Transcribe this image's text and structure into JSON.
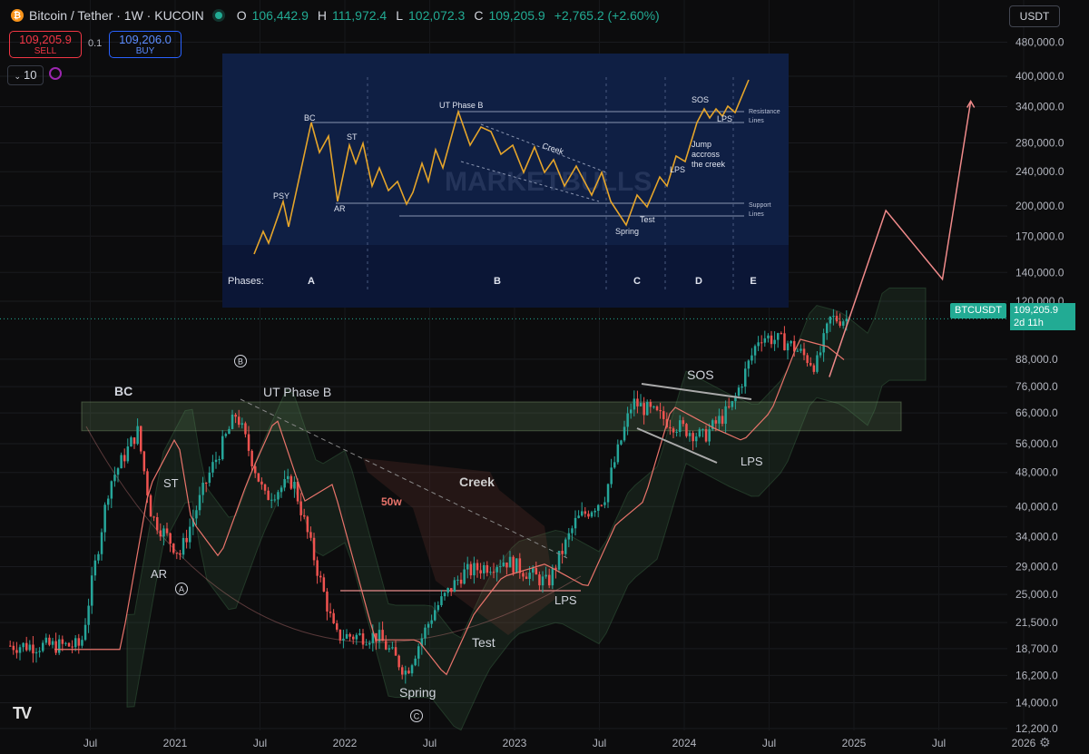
{
  "header": {
    "symbol_icon": "bitcoin-icon",
    "title": "Bitcoin / Tether · 1W · KUCOIN",
    "o_label": "O",
    "o_value": "106,442.9",
    "h_label": "H",
    "h_value": "111,972.4",
    "l_label": "L",
    "l_value": "102,072.3",
    "c_label": "C",
    "c_value": "109,205.9",
    "change": "+2,765.2 (+2.60%)"
  },
  "trade": {
    "sell_price": "109,205.9",
    "sell_label": "SELL",
    "spread": "0.1",
    "buy_price": "109,206.0",
    "buy_label": "BUY"
  },
  "lots": "10",
  "currency": "USDT",
  "price_axis": [
    "480,000.0",
    "400,000.0",
    "340,000.0",
    "280,000.0",
    "240,000.0",
    "200,000.0",
    "170,000.0",
    "140,000.0",
    "120,000.0",
    "88,000.0",
    "76,000.0",
    "66,000.0",
    "56,000.0",
    "48,000.0",
    "40,000.0",
    "34,000.0",
    "29,000.0",
    "25,000.0",
    "21,500.0",
    "18,700.0",
    "16,200.0",
    "14,000.0",
    "12,200.0"
  ],
  "time_axis": [
    "Jul",
    "2021",
    "Jul",
    "2022",
    "Jul",
    "2023",
    "Jul",
    "2024",
    "Jul",
    "2025",
    "Jul",
    "2026"
  ],
  "price_tag": {
    "symbol": "BTCUSDT",
    "price": "109,205.9",
    "countdown": "2d 11h"
  },
  "annotations": {
    "bc": "BC",
    "st": "ST",
    "ar": "AR",
    "ut": "UT Phase B",
    "creek": "Creek",
    "ma": "50w",
    "spring": "Spring",
    "test": "Test",
    "lps1": "LPS",
    "sos": "SOS",
    "lps2": "LPS",
    "circle_b": "B",
    "circle_a": "A",
    "circle_c": "C"
  },
  "inset": {
    "labels": {
      "psy": "PSY",
      "bc": "BC",
      "st": "ST",
      "ar": "AR",
      "ut": "UT Phase B",
      "creek": "Creek",
      "spring": "Spring",
      "test": "Test",
      "lps_d": "LPS",
      "sos": "SOS",
      "lps_e": "LPS",
      "jump1": "Jump",
      "jump2": "accross",
      "jump3": "the creek",
      "res1": "Resistance",
      "res2": "Lines",
      "sup1": "Support",
      "sup2": "Lines",
      "watermark": "MARKETBULLS"
    },
    "phases_label": "Phases:",
    "phases": [
      "A",
      "B",
      "C",
      "D",
      "E"
    ]
  },
  "chart_data": {
    "type": "candlestick",
    "symbol": "BTCUSDT",
    "interval": "1W",
    "y_scale": "log",
    "ylim": [
      11500,
      520000
    ],
    "close_path": [
      {
        "x": "2020-12",
        "close": 19000
      },
      {
        "x": "2021-02",
        "close": 45000
      },
      {
        "x": "2021-04",
        "close": 60000
      },
      {
        "x": "2021-05",
        "close": 38000
      },
      {
        "x": "2021-07",
        "close": 31000
      },
      {
        "x": "2021-09",
        "close": 47000
      },
      {
        "x": "2021-11",
        "close": 66000
      },
      {
        "x": "2022-01",
        "close": 42000
      },
      {
        "x": "2022-03",
        "close": 46000
      },
      {
        "x": "2022-06",
        "close": 20000
      },
      {
        "x": "2022-09",
        "close": 20000
      },
      {
        "x": "2022-11",
        "close": 16500
      },
      {
        "x": "2023-01",
        "close": 23000
      },
      {
        "x": "2023-03",
        "close": 28000
      },
      {
        "x": "2023-06",
        "close": 30000
      },
      {
        "x": "2023-09",
        "close": 26500
      },
      {
        "x": "2023-11",
        "close": 37000
      },
      {
        "x": "2024-01",
        "close": 42000
      },
      {
        "x": "2024-03",
        "close": 70000
      },
      {
        "x": "2024-06",
        "close": 62000
      },
      {
        "x": "2024-08",
        "close": 58000
      },
      {
        "x": "2024-10",
        "close": 68000
      },
      {
        "x": "2024-12",
        "close": 100000
      },
      {
        "x": "2025-02",
        "close": 96000
      },
      {
        "x": "2025-04",
        "close": 85000
      },
      {
        "x": "2025-05",
        "close": 109205.9
      }
    ],
    "projection": [
      {
        "x": "2025-05",
        "price": 80000
      },
      {
        "x": "2025-09",
        "price": 195000
      },
      {
        "x": "2026-01",
        "price": 135000
      },
      {
        "x": "2026-03",
        "price": 350000
      }
    ],
    "resistance_zone": [
      60000,
      70000
    ],
    "support_line": 25500,
    "last_price": 109205.9
  }
}
